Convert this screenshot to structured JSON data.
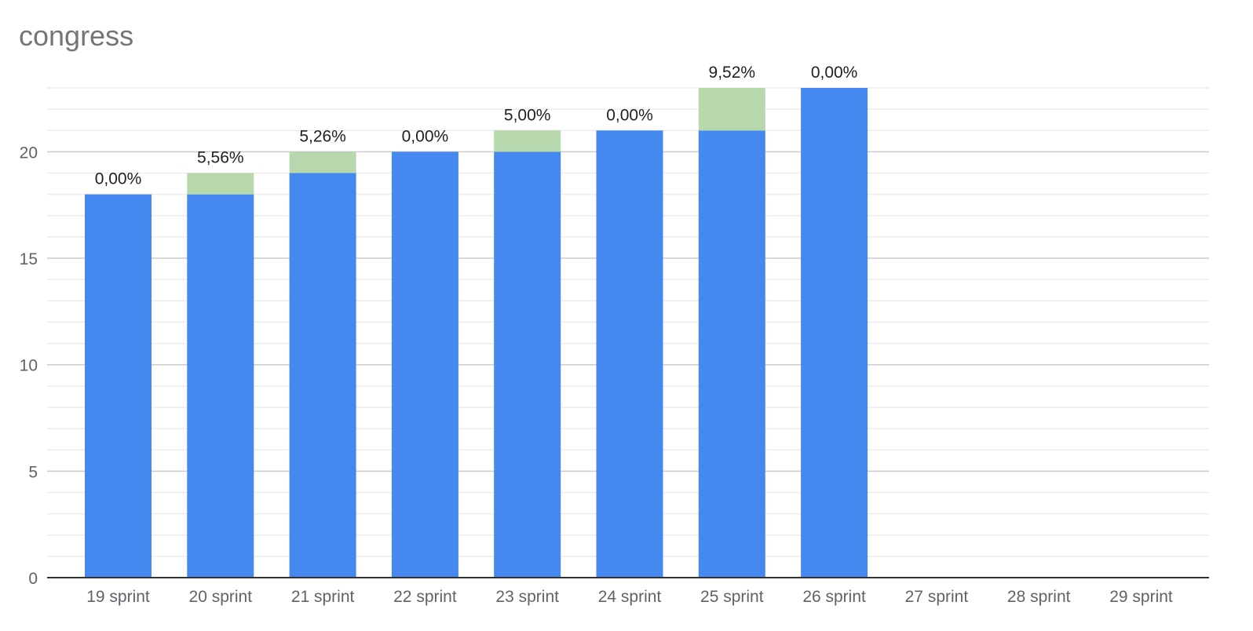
{
  "chart_data": {
    "type": "bar",
    "stacked": true,
    "title": "congress",
    "xlabel": "",
    "ylabel": "",
    "ylim": [
      0,
      23
    ],
    "yticks": [
      "0",
      "5",
      "10",
      "15",
      "20"
    ],
    "grid": true,
    "legend": "none",
    "categories": [
      "19 sprint",
      "20 sprint",
      "21 sprint",
      "22 sprint",
      "23 sprint",
      "24 sprint",
      "25 sprint",
      "26 sprint",
      "27 sprint",
      "28 sprint",
      "29 sprint"
    ],
    "series": [
      {
        "color": "#4589f0",
        "values": [
          18,
          18,
          19,
          20,
          20,
          21,
          21,
          23,
          null,
          null,
          null
        ]
      },
      {
        "color": "#b7d7ad",
        "values": [
          0,
          1,
          1,
          0,
          1,
          0,
          2,
          0,
          null,
          null,
          null
        ]
      }
    ],
    "data_labels": [
      "0,00%",
      "5,56%",
      "5,26%",
      "0,00%",
      "5,00%",
      "0,00%",
      "9,52%",
      "0,00%",
      "",
      "",
      ""
    ]
  }
}
